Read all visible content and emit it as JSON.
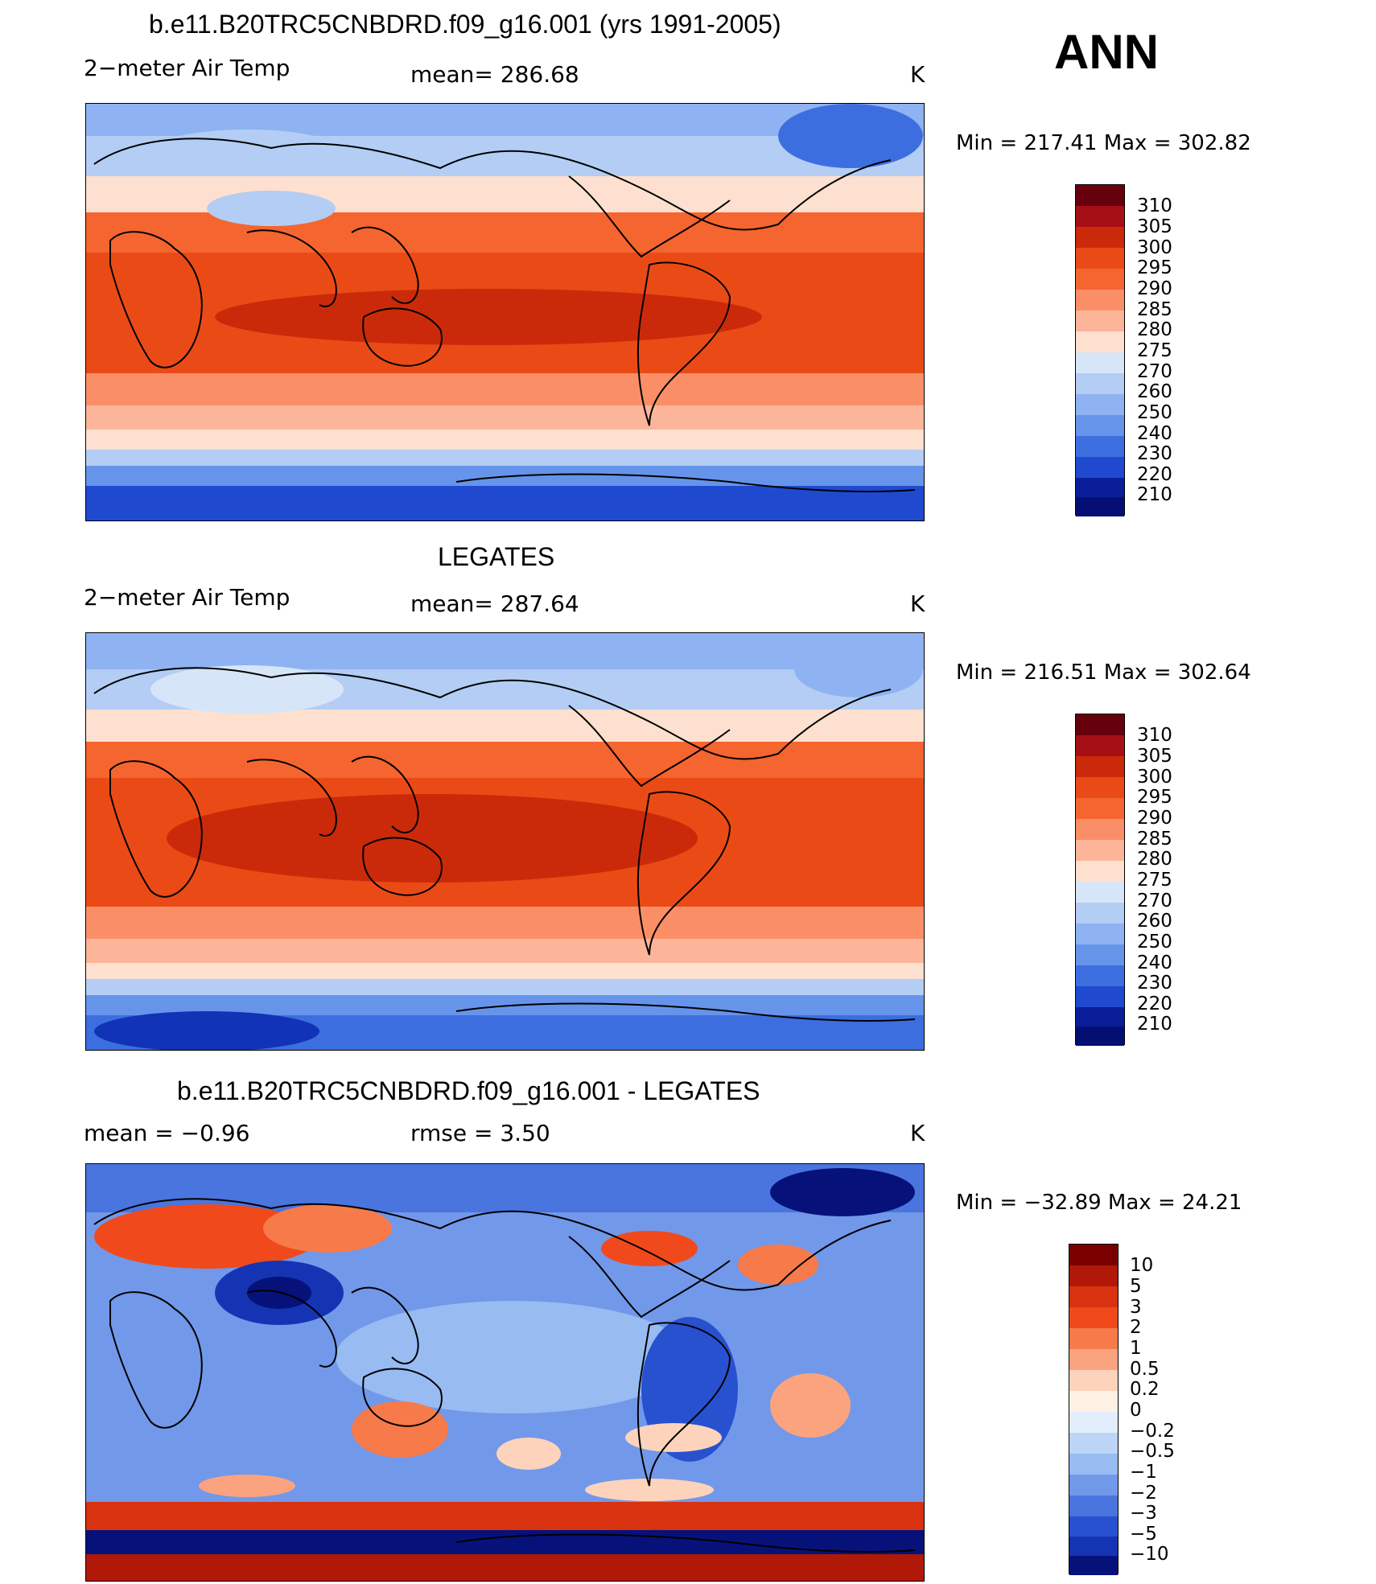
{
  "annotation": "ANN",
  "panels": [
    {
      "title": "b.e11.B20TRC5CNBDRD.f09_g16.001 (yrs 1991-2005)",
      "left_label": "2−meter Air Temp",
      "center_label": "mean=  286.68",
      "units": "K",
      "minmax": "Min  =  217.41  Max  =  302.82",
      "colorbar_labels": [
        "310",
        "305",
        "300",
        "295",
        "290",
        "285",
        "280",
        "275",
        "270",
        "260",
        "250",
        "240",
        "230",
        "220",
        "210"
      ]
    },
    {
      "title": "LEGATES",
      "left_label": "2−meter Air Temp",
      "center_label": "mean=  287.64",
      "units": "K",
      "minmax": "Min  =  216.51  Max  =  302.64",
      "colorbar_labels": [
        "310",
        "305",
        "300",
        "295",
        "290",
        "285",
        "280",
        "275",
        "270",
        "260",
        "250",
        "240",
        "230",
        "220",
        "210"
      ]
    },
    {
      "title": "b.e11.B20TRC5CNBDRD.f09_g16.001 - LEGATES",
      "left_label": "mean  =     −0.96",
      "center_label": "rmse  =      3.50",
      "units": "K",
      "minmax": "Min  =  −32.89  Max  =     24.21",
      "colorbar_labels": [
        "10",
        "5",
        "3",
        "2",
        "1",
        "0.5",
        "0.2",
        "0",
        "−0.2",
        "−0.5",
        "−1",
        "−2",
        "−3",
        "−5",
        "−10"
      ]
    }
  ],
  "colors": {
    "abs_scale": [
      "#67000d",
      "#a50f15",
      "#cb2a0a",
      "#ea4b16",
      "#f5652f",
      "#fa8f67",
      "#fcb599",
      "#fde0cf",
      "#fff3e8",
      "#d6e6f8",
      "#b3cdf5",
      "#8fb3f2",
      "#6694ea",
      "#3d6ee0",
      "#1f4ad0",
      "#1133b8",
      "#0a1e9a",
      "#050f73"
    ],
    "diff_scale": [
      "#7a0000",
      "#b01808",
      "#d83210",
      "#f04a1c",
      "#f77a4a",
      "#fba37e",
      "#fdd3bb",
      "#fff0e4",
      "#e2eefc",
      "#bcd4f6",
      "#98bbf2",
      "#7298ea",
      "#4a74de",
      "#2851cf",
      "#1534b4",
      "#06127a"
    ]
  }
}
